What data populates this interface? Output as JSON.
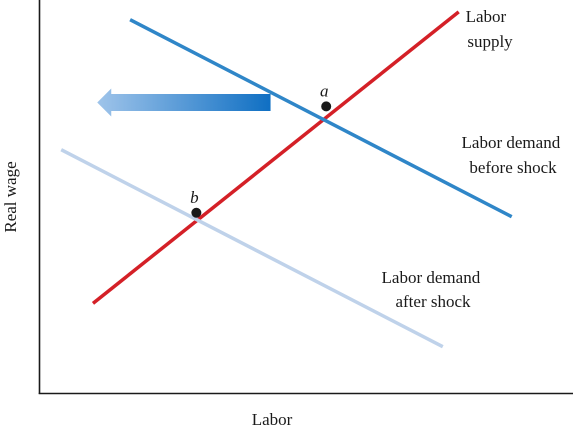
{
  "chart_data": {
    "type": "line",
    "title": "",
    "xlabel": "Labor",
    "ylabel": "Real wage",
    "xlim": [
      0,
      10
    ],
    "ylim": [
      0,
      10
    ],
    "grid": false,
    "ticks": false,
    "series": [
      {
        "name": "Labor supply",
        "label_lines": [
          "Labor",
          "supply"
        ],
        "color": "#d42027",
        "points": [
          [
            1.0,
            2.3
          ],
          [
            7.9,
            9.7
          ]
        ]
      },
      {
        "name": "Labor demand before shock",
        "label_lines": [
          "Labor demand",
          "before shock"
        ],
        "color": "#2f86c8",
        "points": [
          [
            1.7,
            9.5
          ],
          [
            8.9,
            4.5
          ]
        ]
      },
      {
        "name": "Labor demand after shock",
        "label_lines": [
          "Labor demand",
          "after shock"
        ],
        "color": "#bfd2ea",
        "points": [
          [
            0.4,
            6.2
          ],
          [
            7.6,
            1.2
          ]
        ]
      }
    ],
    "points": [
      {
        "label": "a",
        "x": 5.4,
        "y": 7.3
      },
      {
        "label": "b",
        "x": 2.95,
        "y": 4.6
      }
    ],
    "annotation": {
      "type": "arrow",
      "direction": "left",
      "meaning": "demand shift",
      "from": [
        4.35,
        7.4
      ],
      "to": [
        1.08,
        7.4
      ],
      "color_start": "#9fc4ea",
      "color_end": "#0f6fc3"
    }
  }
}
